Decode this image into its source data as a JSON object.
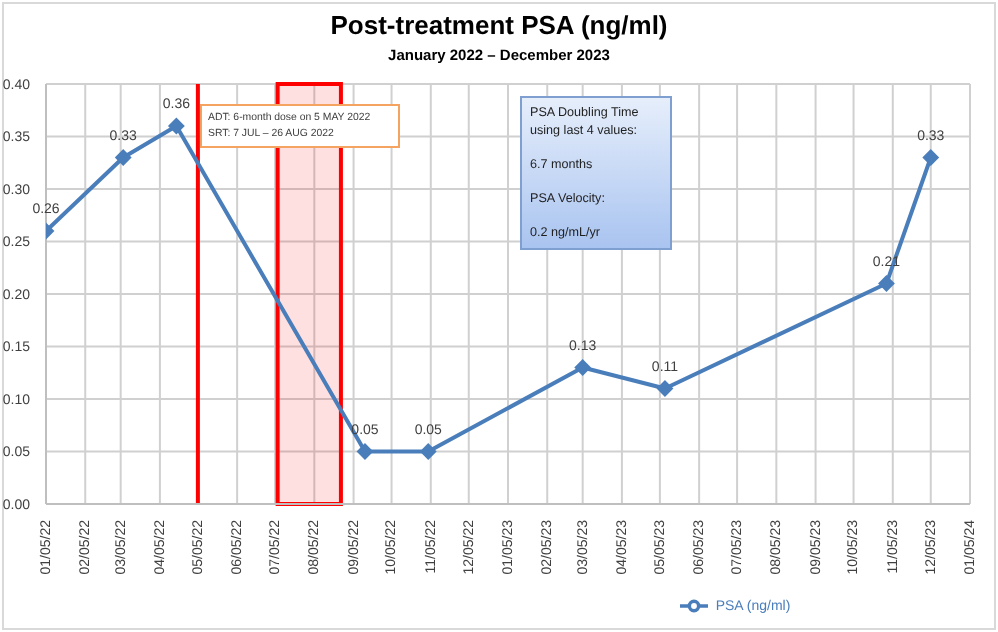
{
  "chart_data": {
    "type": "line",
    "title": "Post-treatment PSA (ng/ml)",
    "subtitle": "January 2022 – December 2023",
    "x": [
      "2022-01-05",
      "2022-03-07",
      "2022-04-18",
      "2022-09-14",
      "2022-11-03",
      "2023-03-05",
      "2023-05-09",
      "2023-10-31",
      "2023-12-05"
    ],
    "series": [
      {
        "name": "PSA (ng/ml)",
        "color": "#4a7ebb",
        "values": [
          0.26,
          0.33,
          0.36,
          0.05,
          0.05,
          0.13,
          0.11,
          0.21,
          0.33
        ]
      }
    ],
    "xlim": [
      "2022-01-05",
      "2024-01-05"
    ],
    "xticks": [
      {
        "value": "2022-01-05",
        "label": "01/05/22"
      },
      {
        "value": "2022-02-05",
        "label": "02/05/22"
      },
      {
        "value": "2022-03-05",
        "label": "03/05/22"
      },
      {
        "value": "2022-04-05",
        "label": "04/05/22"
      },
      {
        "value": "2022-05-05",
        "label": "05/05/22"
      },
      {
        "value": "2022-06-05",
        "label": "06/05/22"
      },
      {
        "value": "2022-07-05",
        "label": "07/05/22"
      },
      {
        "value": "2022-08-05",
        "label": "08/05/22"
      },
      {
        "value": "2022-09-05",
        "label": "09/05/22"
      },
      {
        "value": "2022-10-05",
        "label": "10/05/22"
      },
      {
        "value": "2022-11-05",
        "label": "11/05/22"
      },
      {
        "value": "2022-12-05",
        "label": "12/05/22"
      },
      {
        "value": "2023-01-05",
        "label": "01/05/23"
      },
      {
        "value": "2023-02-05",
        "label": "02/05/23"
      },
      {
        "value": "2023-03-05",
        "label": "03/05/23"
      },
      {
        "value": "2023-04-05",
        "label": "04/05/23"
      },
      {
        "value": "2023-05-05",
        "label": "05/05/23"
      },
      {
        "value": "2023-06-05",
        "label": "06/05/23"
      },
      {
        "value": "2023-07-05",
        "label": "07/05/23"
      },
      {
        "value": "2023-08-05",
        "label": "08/05/23"
      },
      {
        "value": "2023-09-05",
        "label": "09/05/23"
      },
      {
        "value": "2023-10-05",
        "label": "10/05/23"
      },
      {
        "value": "2023-11-05",
        "label": "11/05/23"
      },
      {
        "value": "2023-12-05",
        "label": "12/05/23"
      },
      {
        "value": "2024-01-05",
        "label": "01/05/24"
      }
    ],
    "ylim": [
      0,
      0.4
    ],
    "yticks": [
      {
        "value": 0,
        "label": "0.00"
      },
      {
        "value": 0.05,
        "label": "0.05"
      },
      {
        "value": 0.1,
        "label": "0.10"
      },
      {
        "value": 0.15,
        "label": "0.15"
      },
      {
        "value": 0.2,
        "label": "0.20"
      },
      {
        "value": 0.25,
        "label": "0.25"
      },
      {
        "value": 0.3,
        "label": "0.30"
      },
      {
        "value": 0.35,
        "label": "0.35"
      },
      {
        "value": 0.4,
        "label": "0.40"
      }
    ],
    "ref_lines": [
      {
        "axis": "x",
        "value": "2022-05-05",
        "label": "ADT: 6-month dose on 5 MAY 2022",
        "color": "#ff0000"
      }
    ],
    "bands": [
      {
        "axis": "x",
        "from": "2022-07-07",
        "to": "2022-08-26",
        "label": "SRT: 7 JUL – 26 AUG 2022",
        "color": "#ff0000"
      }
    ],
    "annotations": [
      "PSA Doubling Time using last 4 values:",
      "6.7 months",
      "PSA Velocity:",
      "0.2 ng/mL/yr"
    ],
    "data_labels": true,
    "grid": true,
    "legend": "bottom",
    "marker": "diamond",
    "line_style": "solid"
  }
}
